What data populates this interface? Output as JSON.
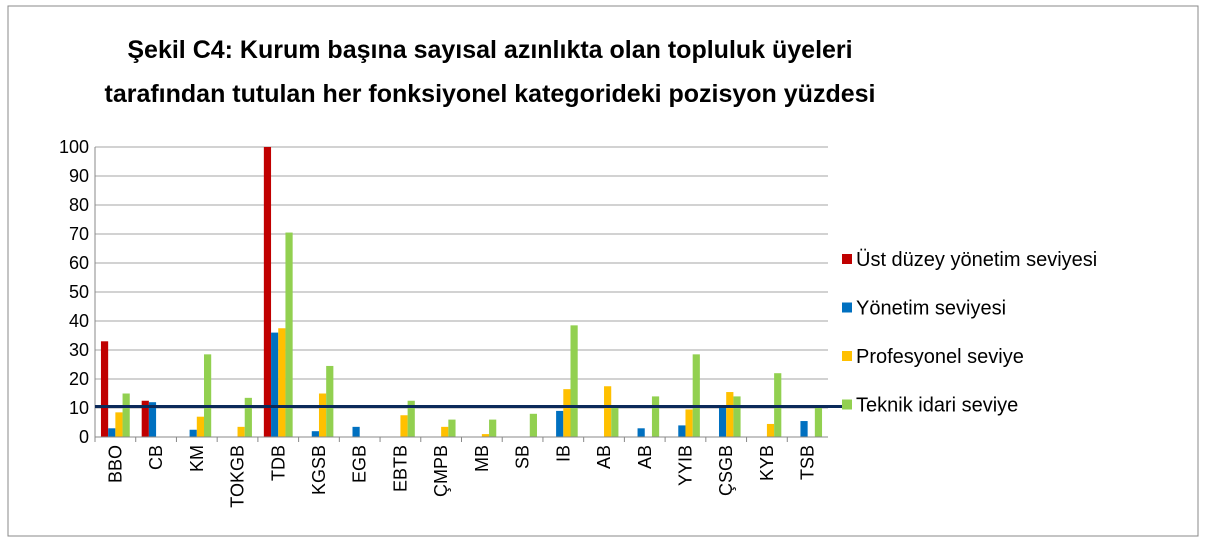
{
  "chart_data": {
    "type": "bar",
    "title": [
      "Şekil C4: Kurum başına sayısal azınlıkta olan topluluk üyeleri",
      "tarafından tutulan her fonksiyonel kategorideki pozisyon yüzdesi"
    ],
    "categories": [
      "BBO",
      "CB",
      "KM",
      "TOKGB",
      "TDB",
      "KGSB",
      "EGB",
      "EBTB",
      "ÇMPB",
      "MB",
      "SB",
      "IB",
      "AB",
      "AB",
      "YYIB",
      "ÇSGB",
      "KYB",
      "TSB"
    ],
    "series": [
      {
        "name": "Üst düzey yönetim seviyesi",
        "color": "#c00000",
        "values": [
          33,
          12.5,
          0,
          0,
          100,
          0,
          0,
          0,
          0,
          0,
          0,
          0,
          0,
          0,
          0,
          0,
          0,
          0
        ]
      },
      {
        "name": "Yönetim seviyesi",
        "color": "#0070c0",
        "values": [
          3,
          12,
          2.5,
          0,
          36,
          2,
          3.5,
          0,
          0,
          0,
          0,
          9,
          0,
          3,
          4,
          10.5,
          0,
          5.5
        ]
      },
      {
        "name": "Profesyonel seviye",
        "color": "#ffc000",
        "values": [
          8.5,
          0,
          7,
          3.5,
          37.5,
          15,
          0,
          7.5,
          3.5,
          1,
          0,
          16.5,
          17.5,
          0,
          9.5,
          15.5,
          4.5,
          0
        ]
      },
      {
        "name": "Teknik idari seviye",
        "color": "#92d050",
        "values": [
          15,
          0,
          28.5,
          13.5,
          70.5,
          24.5,
          0,
          12.5,
          6,
          6,
          8,
          38.5,
          10.5,
          14,
          28.5,
          14,
          22,
          10
        ]
      }
    ],
    "reference_line": 10.5,
    "reference_color": "#0b2a5a",
    "ylim": [
      0,
      100
    ],
    "yticks": [
      0,
      10,
      20,
      30,
      40,
      50,
      60,
      70,
      80,
      90,
      100
    ],
    "grid": true,
    "legend": "right"
  }
}
